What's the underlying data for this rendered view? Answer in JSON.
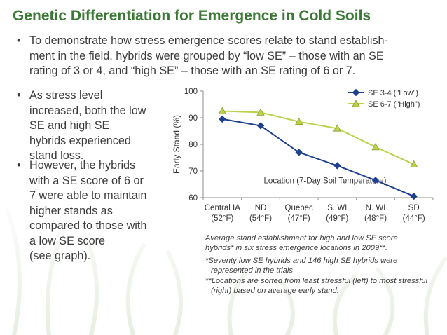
{
  "slide": {
    "title": "Genetic Differentiation for Emergence in Cold Soils",
    "bullet1": {
      "line1": "To demonstrate how stress emergence scores relate to stand establish-",
      "line2": "ment in the field, hybrids were grouped by “low SE” – those with an SE",
      "line3": "rating of 3 or 4, and “high SE” – those with an SE rating of 6 or 7."
    },
    "bullet2": {
      "line1": "As stress level",
      "line2": "increased, both the low",
      "line3": "SE and high SE",
      "line4": "hybrids experienced",
      "line5": "stand loss."
    },
    "bullet3": {
      "line1": "However, the hybrids",
      "line2": "with a SE score of 6 or",
      "line3": "7 were able to maintain",
      "line4": "higher stands as",
      "line5": "compared to those with",
      "line6": "a low SE score",
      "line7": "(see graph)."
    },
    "bullet_glyph": "•",
    "caption": {
      "line1": "Average stand establishment for high and low SE score",
      "line2": "hybrids* in six stress emergence locations in 2009**.",
      "note1a": "*Seventy low SE hybrids and 146 high SE hybrids were",
      "note1b": "represented in the trials",
      "note2a": "**Locations are sorted from least stressful (left) to most stressful",
      "note2b": "(right) based on average early stand."
    }
  },
  "colors": {
    "title": "#3a7a35",
    "low_series": "#1f3f8f",
    "high_series": "#b9d44a",
    "high_marker_stroke": "#8aa030",
    "background_plants": "#cfe0c4"
  },
  "chart_data": {
    "type": "line",
    "ylabel": "Early Stand (%)",
    "annotation": "Location (7-Day Soil Temperature)",
    "ylim": [
      60,
      100
    ],
    "yticks": [
      60,
      70,
      80,
      90,
      100
    ],
    "grid": false,
    "legend_position": "top-right",
    "categories": [
      {
        "name": "Central IA",
        "temp": "(52°F)"
      },
      {
        "name": "ND",
        "temp": "(54°F)"
      },
      {
        "name": "Quebec",
        "temp": "(47°F)"
      },
      {
        "name": "S. WI",
        "temp": "(49°F)"
      },
      {
        "name": "N. WI",
        "temp": "(48°F)"
      },
      {
        "name": "SD",
        "temp": "(44°F)"
      }
    ],
    "series": [
      {
        "name": "SE 3-4 (\"Low\")",
        "marker": "diamond",
        "values": [
          89.5,
          87,
          77,
          72,
          66.5,
          60.5
        ]
      },
      {
        "name": "SE 6-7 (\"High\")",
        "marker": "triangle",
        "values": [
          92.5,
          92,
          88.5,
          86,
          79,
          72.5
        ]
      }
    ]
  }
}
